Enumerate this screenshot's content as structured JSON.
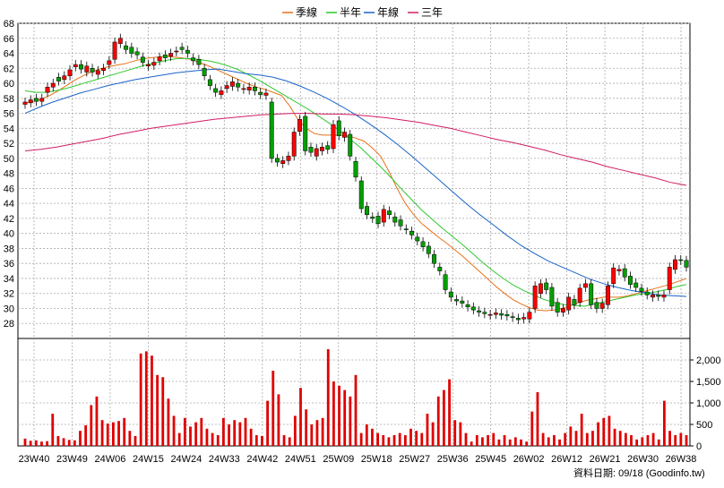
{
  "chart_data": {
    "type": "candlestick",
    "legend": [
      {
        "name": "季線",
        "color": "#e8711a"
      },
      {
        "name": "半年",
        "color": "#2ec82e"
      },
      {
        "name": "年線",
        "color": "#1a63c8"
      },
      {
        "name": "三年",
        "color": "#d01c66"
      }
    ],
    "price_axis": {
      "min": 26,
      "max": 68,
      "step": 2
    },
    "price_ticks": [
      "28",
      "30",
      "32",
      "34",
      "36",
      "38",
      "40",
      "42",
      "44",
      "46",
      "48",
      "50",
      "52",
      "54",
      "56",
      "58",
      "60",
      "62",
      "64",
      "66",
      "68"
    ],
    "volume_axis": {
      "min": 0,
      "max": 2500
    },
    "volume_ticks": [
      "0",
      "500",
      "1,000",
      "1,500",
      "2,000"
    ],
    "x_ticks": [
      "23W40",
      "23W49",
      "24W06",
      "24W15",
      "24W24",
      "24W33",
      "24W42",
      "24W51",
      "25W09",
      "25W18",
      "25W27",
      "25W36",
      "25W45",
      "26W02",
      "26W12",
      "26W21",
      "26W30",
      "26W38"
    ],
    "footer": "資料日期: 09/18  (Goodinfo.tw)",
    "colors": {
      "up": "#ff0000",
      "down": "#00a000",
      "volume": "#e00000",
      "grid": "#aaaaaa"
    },
    "price_close": [
      57.5,
      57.8,
      57.6,
      58.0,
      59.5,
      60.0,
      60.3,
      61.0,
      61.8,
      62.5,
      61.9,
      62.3,
      61.5,
      61.7,
      62.0,
      63.0,
      65.5,
      66.0,
      64.5,
      64.0,
      63.8,
      62.8,
      62.5,
      62.8,
      63.5,
      63.4,
      64.0,
      64.3,
      64.5,
      64.0,
      63.0,
      62.5,
      61.0,
      59.7,
      58.8,
      59.0,
      59.7,
      60.2,
      59.5,
      59.3,
      59.5,
      59.0,
      58.5,
      58.7,
      50.0,
      49.5,
      49.7,
      50.3,
      53.5,
      55.2,
      51.0,
      50.8,
      51.3,
      51.5,
      51.2,
      54.5,
      53.0,
      53.5,
      50.3,
      47.5,
      43.3,
      42.5,
      42.0,
      41.3,
      43.2,
      42.5,
      41.5,
      41.0,
      40.5,
      39.8,
      39.0,
      38.2,
      37.3,
      36.0,
      35.0,
      32.5,
      31.5,
      31.0,
      30.7,
      30.2,
      29.8,
      29.5,
      29.3,
      29.2,
      29.4,
      29.1,
      29.0,
      28.8,
      28.5,
      28.8,
      29.5,
      33.0,
      33.3,
      32.5,
      30.3,
      29.5,
      30.0,
      31.5,
      30.5,
      32.7,
      33.3,
      30.5,
      30.0,
      30.7,
      33.0,
      35.4,
      35.2,
      34.2,
      33.2,
      32.8,
      32.3,
      31.8,
      31.8,
      31.6,
      31.8,
      35.5,
      36.5,
      36.4,
      35.5
    ],
    "price_open": [
      57.2,
      57.4,
      58.0,
      57.6,
      58.8,
      59.5,
      60.8,
      60.5,
      61.0,
      62.2,
      62.5,
      61.5,
      62.0,
      61.2,
      61.7,
      62.5,
      63.2,
      65.3,
      65.0,
      64.8,
      64.2,
      63.5,
      62.3,
      62.4,
      63.0,
      63.8,
      63.6,
      64.2,
      64.8,
      64.4,
      63.4,
      63.2,
      62.0,
      60.5,
      59.3,
      58.5,
      59.3,
      59.6,
      60.0,
      59.2,
      59.1,
      59.5,
      58.8,
      58.4,
      57.5,
      50.0,
      49.3,
      49.7,
      50.3,
      53.6,
      55.6,
      51.5,
      50.3,
      51.0,
      51.7,
      51.3,
      55.0,
      52.8,
      53.2,
      49.6,
      47.0,
      43.6,
      42.2,
      42.3,
      41.5,
      43.0,
      42.2,
      41.8,
      40.6,
      40.3,
      39.5,
      38.9,
      38.3,
      37.2,
      35.5,
      34.5,
      32.2,
      31.2,
      31.0,
      30.5,
      30.2,
      29.7,
      29.5,
      29.1,
      29.2,
      29.3,
      29.2,
      28.9,
      28.7,
      28.6,
      28.6,
      30.0,
      32.0,
      33.4,
      32.8,
      30.8,
      29.5,
      29.8,
      31.2,
      30.8,
      32.8,
      33.3,
      30.8,
      30.0,
      30.5,
      33.3,
      35.0,
      35.3,
      34.3,
      33.4,
      32.7,
      32.2,
      31.5,
      31.8,
      31.5,
      32.5,
      35.2,
      36.5,
      36.4
    ],
    "volume": [
      170,
      120,
      130,
      100,
      110,
      750,
      230,
      180,
      140,
      130,
      350,
      480,
      950,
      1150,
      600,
      520,
      550,
      580,
      650,
      350,
      230,
      2150,
      2200,
      2100,
      1650,
      1600,
      1100,
      700,
      300,
      650,
      450,
      550,
      650,
      400,
      300,
      250,
      650,
      500,
      600,
      550,
      650,
      400,
      250,
      230,
      1050,
      1750,
      1200,
      250,
      200,
      700,
      1350,
      850,
      500,
      600,
      650,
      2250,
      1500,
      1400,
      1300,
      1150,
      1650,
      300,
      500,
      400,
      300,
      250,
      200,
      250,
      300,
      250,
      400,
      350,
      300,
      750,
      550,
      1150,
      1300,
      1550,
      600,
      550,
      300,
      100,
      250,
      200,
      250,
      300,
      150,
      250,
      150,
      200,
      150,
      100,
      800,
      1250,
      300,
      200,
      250,
      150,
      300,
      450,
      350,
      750,
      300,
      350,
      550,
      650,
      700,
      400,
      350,
      300,
      250,
      150,
      200,
      250,
      300,
      150,
      1050,
      350,
      250,
      300,
      250
    ],
    "ma_quarter": [
      57.4,
      57.6,
      57.9,
      58.4,
      59.0,
      59.7,
      60.4,
      61.0,
      61.5,
      61.9,
      62.2,
      62.4,
      62.6,
      62.9,
      63.2,
      63.4,
      63.5,
      63.6,
      63.5,
      63.4,
      63.2,
      62.8,
      62.4,
      61.9,
      61.4,
      60.9,
      60.4,
      59.9,
      59.5,
      59.2,
      58.8,
      58.4,
      57.0,
      55.2,
      54.0,
      53.3,
      53.1,
      53.1,
      53.1,
      53.0,
      52.7,
      52.3,
      51.4,
      50.3,
      48.3,
      46.0,
      44.0,
      42.5,
      41.3,
      40.4,
      39.5,
      38.7,
      37.8,
      36.9,
      35.9,
      34.9,
      33.9,
      32.9,
      32.0,
      31.2,
      30.6,
      30.1,
      29.8,
      29.7,
      29.8,
      30.0,
      30.4,
      30.8,
      31.1,
      31.3,
      31.5,
      31.5,
      31.5,
      31.7,
      32.0,
      32.3,
      32.6,
      32.9,
      33.2,
      33.6,
      34.0
    ],
    "ma_halfyear": [
      59.0,
      58.8,
      58.8,
      59.0,
      59.3,
      59.7,
      60.1,
      60.5,
      60.9,
      61.3,
      61.7,
      62.1,
      62.5,
      62.8,
      63.1,
      63.3,
      63.3,
      63.2,
      63.0,
      62.7,
      62.3,
      61.8,
      61.1,
      60.4,
      59.6,
      58.8,
      58.0,
      57.2,
      56.4,
      55.5,
      54.6,
      53.6,
      52.5,
      51.4,
      50.1,
      48.8,
      47.4,
      45.9,
      44.5,
      43.1,
      41.9,
      40.7,
      39.6,
      38.5,
      37.3,
      36.1,
      35.0,
      34.0,
      33.1,
      32.4,
      31.8,
      31.2,
      30.8,
      30.5,
      30.4,
      30.3,
      30.6,
      30.9,
      31.2,
      31.5,
      31.8,
      32.0,
      32.2,
      32.5,
      32.9,
      33.2
    ],
    "ma_year": [
      56.0,
      56.8,
      57.5,
      58.1,
      58.7,
      59.2,
      59.7,
      60.1,
      60.5,
      60.8,
      61.1,
      61.4,
      61.6,
      61.8,
      61.9,
      61.6,
      61.3,
      61.1,
      60.8,
      60.3,
      59.6,
      58.8,
      57.9,
      56.9,
      55.8,
      54.6,
      53.3,
      51.9,
      50.4,
      48.8,
      47.2,
      45.6,
      44.0,
      42.5,
      41.1,
      39.7,
      38.4,
      37.3,
      36.3,
      35.5,
      34.7,
      33.9,
      33.3,
      32.8,
      32.4,
      32.1,
      31.8,
      31.7,
      31.6
    ],
    "ma_3year": [
      51.0,
      51.2,
      51.5,
      51.9,
      52.3,
      52.7,
      53.2,
      53.6,
      54.0,
      54.3,
      54.6,
      54.9,
      55.2,
      55.4,
      55.6,
      55.8,
      55.9,
      56.0,
      56.0,
      55.9,
      55.9,
      55.8,
      55.6,
      55.4,
      55.1,
      54.8,
      54.4,
      54.0,
      53.5,
      53.0,
      52.5,
      52.1,
      51.6,
      51.1,
      50.5,
      50.0,
      49.5,
      48.9,
      48.4,
      47.9,
      47.4,
      46.8,
      46.4
    ]
  }
}
